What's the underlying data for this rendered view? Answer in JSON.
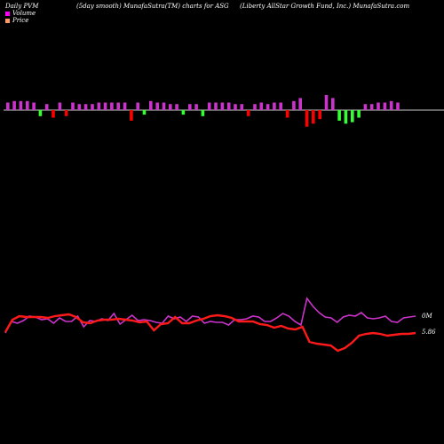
{
  "header": {
    "left": "Daily PVM",
    "center": "(5day smooth) MunafaSutra(TM) charts for ASG",
    "right": "(Liberty AllStar Growth Fund, Inc.) MunafaSutra.com"
  },
  "legend": {
    "volume_label": "Volume",
    "price_label": "Price",
    "volume_color": "#ff00ff",
    "price_color": "#ff9966"
  },
  "colors": {
    "up_bar": "#cc33cc",
    "down_bar_red": "#ff0000",
    "down_bar_green": "#33ff33",
    "volume_line": "#cc33cc",
    "price_line": "#ff1a1a",
    "baseline": "#cccccc"
  },
  "chart_data": {
    "type": "bar+line",
    "volume_tag": "0M",
    "price_tag": "5.86",
    "bars": [
      {
        "v": 5,
        "c": "up"
      },
      {
        "v": 6,
        "c": "up"
      },
      {
        "v": 6,
        "c": "up"
      },
      {
        "v": 6,
        "c": "up"
      },
      {
        "v": 5,
        "c": "up"
      },
      {
        "v": -4,
        "c": "green"
      },
      {
        "v": 4,
        "c": "up"
      },
      {
        "v": -5,
        "c": "red"
      },
      {
        "v": 5,
        "c": "up"
      },
      {
        "v": -4,
        "c": "red"
      },
      {
        "v": 5,
        "c": "up"
      },
      {
        "v": 4,
        "c": "up"
      },
      {
        "v": 4,
        "c": "up"
      },
      {
        "v": 4,
        "c": "up"
      },
      {
        "v": 5,
        "c": "up"
      },
      {
        "v": 5,
        "c": "up"
      },
      {
        "v": 5,
        "c": "up"
      },
      {
        "v": 5,
        "c": "up"
      },
      {
        "v": 5,
        "c": "up"
      },
      {
        "v": -7,
        "c": "red"
      },
      {
        "v": 5,
        "c": "up"
      },
      {
        "v": -3,
        "c": "green"
      },
      {
        "v": 6,
        "c": "up"
      },
      {
        "v": 5,
        "c": "up"
      },
      {
        "v": 5,
        "c": "up"
      },
      {
        "v": 4,
        "c": "up"
      },
      {
        "v": 4,
        "c": "up"
      },
      {
        "v": -3,
        "c": "green"
      },
      {
        "v": 4,
        "c": "up"
      },
      {
        "v": 4,
        "c": "up"
      },
      {
        "v": -4,
        "c": "green"
      },
      {
        "v": 5,
        "c": "up"
      },
      {
        "v": 5,
        "c": "up"
      },
      {
        "v": 5,
        "c": "up"
      },
      {
        "v": 5,
        "c": "up"
      },
      {
        "v": 4,
        "c": "up"
      },
      {
        "v": 4,
        "c": "up"
      },
      {
        "v": -4,
        "c": "red"
      },
      {
        "v": 4,
        "c": "up"
      },
      {
        "v": 5,
        "c": "up"
      },
      {
        "v": 4,
        "c": "up"
      },
      {
        "v": 5,
        "c": "up"
      },
      {
        "v": 5,
        "c": "up"
      },
      {
        "v": -5,
        "c": "red"
      },
      {
        "v": 6,
        "c": "up"
      },
      {
        "v": 8,
        "c": "up"
      },
      {
        "v": -11,
        "c": "red"
      },
      {
        "v": -9,
        "c": "red"
      },
      {
        "v": -6,
        "c": "red"
      },
      {
        "v": 10,
        "c": "up"
      },
      {
        "v": 8,
        "c": "up"
      },
      {
        "v": -7,
        "c": "green"
      },
      {
        "v": -9,
        "c": "green"
      },
      {
        "v": -8,
        "c": "green"
      },
      {
        "v": -5,
        "c": "green"
      },
      {
        "v": 4,
        "c": "up"
      },
      {
        "v": 4,
        "c": "up"
      },
      {
        "v": 5,
        "c": "up"
      },
      {
        "v": 5,
        "c": "up"
      },
      {
        "v": 6,
        "c": "up"
      },
      {
        "v": 5,
        "c": "up"
      }
    ],
    "volume_line": [
      375,
      362,
      364,
      361,
      356,
      357,
      360,
      359,
      364,
      358,
      362,
      362,
      356,
      368,
      361,
      362,
      359,
      361,
      353,
      365,
      360,
      355,
      361,
      360,
      361,
      363,
      364,
      356,
      359,
      357,
      362,
      356,
      357,
      364,
      362,
      363,
      363,
      366,
      360,
      360,
      359,
      356,
      357,
      362,
      362,
      358,
      353,
      356,
      362,
      366,
      336,
      345,
      352,
      357,
      358,
      363,
      357,
      355,
      356,
      352,
      358,
      359,
      358,
      356,
      362,
      363,
      358,
      357,
      356
    ],
    "price_line": [
      374,
      360,
      356,
      357,
      357,
      357,
      358,
      356,
      355,
      354,
      357,
      363,
      364,
      361,
      360,
      360,
      359,
      360,
      361,
      363,
      362,
      372,
      365,
      364,
      357,
      364,
      364,
      361,
      359,
      356,
      355,
      356,
      358,
      362,
      362,
      362,
      365,
      366,
      369,
      367,
      370,
      371,
      368,
      385,
      387,
      388,
      389,
      395,
      392,
      386,
      378,
      376,
      375,
      376,
      378,
      377,
      376,
      376,
      375
    ]
  }
}
